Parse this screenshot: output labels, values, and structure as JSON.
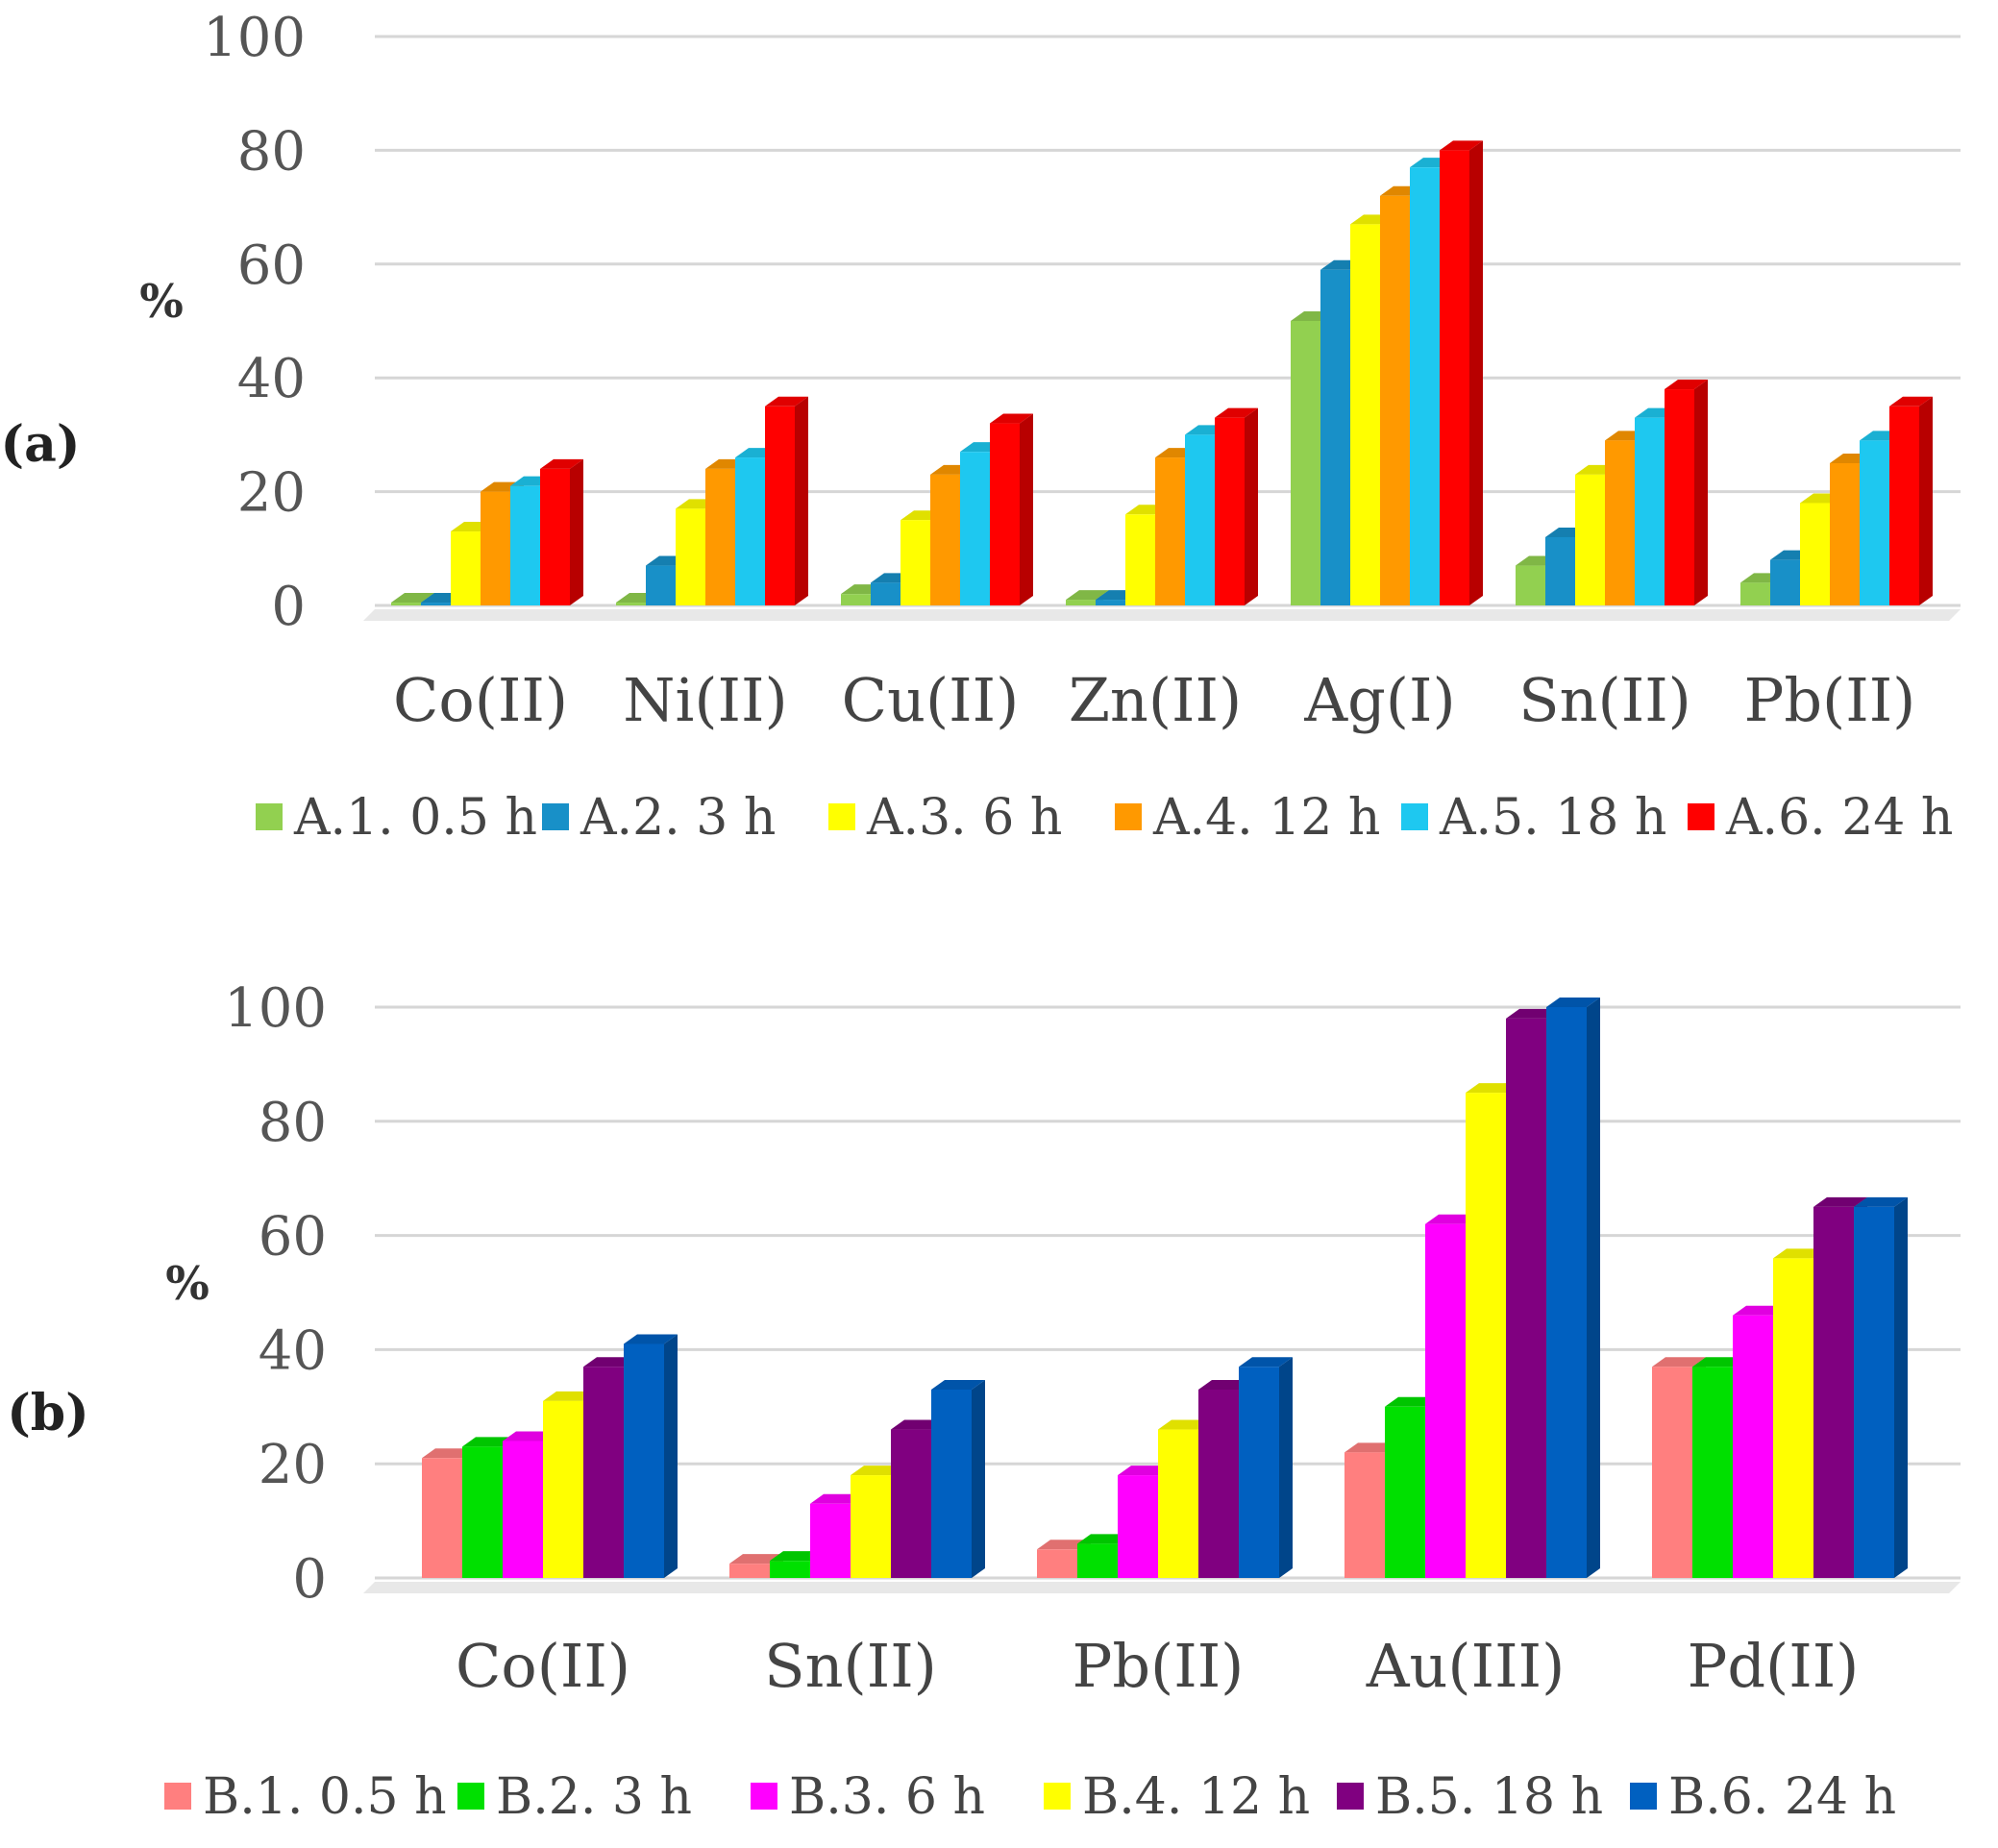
{
  "chart_data": [
    {
      "type": "bar",
      "panel_label": "(a)",
      "ylabel": "%",
      "ylim": [
        0,
        100
      ],
      "yticks": [
        0,
        20,
        40,
        60,
        80,
        100
      ],
      "categories": [
        "Co(II)",
        "Ni(II)",
        "Cu(II)",
        "Zn(II)",
        "Ag(I)",
        "Sn(II)",
        "Pb(II)"
      ],
      "series": [
        {
          "name": "A.1. 0.5 h",
          "color": "#92d050",
          "values": [
            0.5,
            0.5,
            2,
            1,
            50,
            7,
            4
          ]
        },
        {
          "name": "A.2. 3 h",
          "color": "#1890c8",
          "values": [
            0.5,
            7,
            4,
            1,
            59,
            12,
            8
          ]
        },
        {
          "name": "A.3. 6 h",
          "color": "#ffff00",
          "values": [
            13,
            17,
            15,
            16,
            67,
            23,
            18
          ]
        },
        {
          "name": "A.4. 12 h",
          "color": "#ff9900",
          "values": [
            20,
            24,
            23,
            26,
            72,
            29,
            25
          ]
        },
        {
          "name": "A.5. 18 h",
          "color": "#1ec8f0",
          "values": [
            21,
            26,
            27,
            30,
            77,
            33,
            29
          ]
        },
        {
          "name": "A.6. 24 h",
          "color": "#ff0000",
          "values": [
            24,
            35,
            32,
            33,
            80,
            38,
            35
          ]
        }
      ]
    },
    {
      "type": "bar",
      "panel_label": "(b)",
      "ylabel": "%",
      "ylim": [
        0,
        100
      ],
      "yticks": [
        0,
        20,
        40,
        60,
        80,
        100
      ],
      "categories": [
        "Co(II)",
        "Sn(II)",
        "Pb(II)",
        "Au(III)",
        "Pd(II)"
      ],
      "series": [
        {
          "name": "B.1. 0.5 h",
          "color": "#ff7f7f",
          "values": [
            21,
            2.5,
            5,
            22,
            37
          ]
        },
        {
          "name": "B.2. 3 h",
          "color": "#00e000",
          "values": [
            23,
            3,
            6,
            30,
            37
          ]
        },
        {
          "name": "B.3. 6 h",
          "color": "#ff00ff",
          "values": [
            24,
            13,
            18,
            62,
            46
          ]
        },
        {
          "name": "B.4. 12 h",
          "color": "#ffff00",
          "values": [
            31,
            18,
            26,
            85,
            56
          ]
        },
        {
          "name": "B.5. 18 h",
          "color": "#800080",
          "values": [
            37,
            26,
            33,
            98,
            65
          ]
        },
        {
          "name": "B.6. 24 h",
          "color": "#0060c0",
          "values": [
            41,
            33,
            37,
            100,
            65
          ]
        }
      ]
    }
  ]
}
